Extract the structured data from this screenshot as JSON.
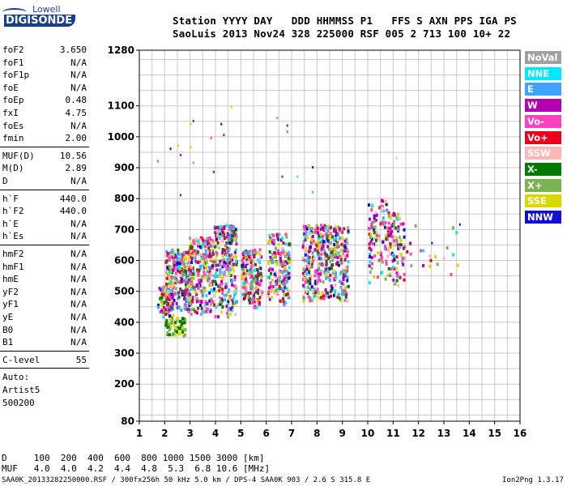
{
  "logo": {
    "top": "Lowell",
    "main": "DIGISONDE"
  },
  "header": {
    "line1": "Station YYYY DAY   DDD HHMMSS P1   FFS S AXN PPS IGA PS",
    "line2": "SaoLuis 2013 Nov24 328 225000 RSF 005 2 713 100 10+ 22"
  },
  "params_group1": [
    {
      "k": "foF2",
      "v": "3.650"
    },
    {
      "k": "foF1",
      "v": "N/A"
    },
    {
      "k": "foF1p",
      "v": "N/A"
    },
    {
      "k": "foE",
      "v": "N/A"
    },
    {
      "k": "foEp",
      "v": "0.48"
    },
    {
      "k": "fxI",
      "v": "4.75"
    },
    {
      "k": "foEs",
      "v": "N/A"
    },
    {
      "k": "fmin",
      "v": "2.00"
    }
  ],
  "params_group2": [
    {
      "k": "MUF(D)",
      "v": "10.56"
    },
    {
      "k": "M(D)",
      "v": "2.89"
    },
    {
      "k": "D",
      "v": "N/A"
    }
  ],
  "params_group3": [
    {
      "k": "h`F",
      "v": "440.0"
    },
    {
      "k": "h`F2",
      "v": "440.0"
    },
    {
      "k": "h`E",
      "v": "N/A"
    },
    {
      "k": "h`Es",
      "v": "N/A"
    }
  ],
  "params_group4": [
    {
      "k": "hmF2",
      "v": "N/A"
    },
    {
      "k": "hmF1",
      "v": "N/A"
    },
    {
      "k": "hmE",
      "v": "N/A"
    },
    {
      "k": "yF2",
      "v": "N/A"
    },
    {
      "k": "yF1",
      "v": "N/A"
    },
    {
      "k": "yE",
      "v": "N/A"
    },
    {
      "k": "B0",
      "v": "N/A"
    },
    {
      "k": "B1",
      "v": "N/A"
    }
  ],
  "clevel": {
    "k": "C-level",
    "v": "55"
  },
  "auto": [
    "Auto:",
    "Artist5",
    "500200"
  ],
  "bottom": {
    "d_line": "D     100  200  400  600  800 1000 1500 3000 [km]",
    "muf_line": "MUF   4.0  4.0  4.2  4.4  4.8  5.3  6.8 10.6 [MHz]"
  },
  "footer": {
    "left": "SAA0K_20133282250000.RSF / 300fx256h 50 kHz 5.0 km / DPS-4 SAA0K 903 / 2.6 S 315.8 E",
    "right": "Ion2Png 1.3.17"
  },
  "legend": [
    {
      "label": "NoVal",
      "color": "#a0a0a0"
    },
    {
      "label": "NNE",
      "color": "#00e8ff"
    },
    {
      "label": "E",
      "color": "#3ea2ff"
    },
    {
      "label": "W",
      "color": "#b000b0"
    },
    {
      "label": "Vo-",
      "color": "#ff40c0"
    },
    {
      "label": "Vo+",
      "color": "#e8001c"
    },
    {
      "label": "SSW",
      "color": "#ffb6b6"
    },
    {
      "label": "X-",
      "color": "#007a00"
    },
    {
      "label": "X+",
      "color": "#78b450"
    },
    {
      "label": "SSE",
      "color": "#d8d800"
    },
    {
      "label": "NNW",
      "color": "#1010d0"
    }
  ],
  "chart_data": {
    "type": "scatter",
    "x_ticks": [
      "1",
      "2",
      "3",
      "4",
      "5",
      "6",
      "7",
      "8",
      "9",
      "10",
      "11",
      "12",
      "13",
      "14",
      "15",
      "16"
    ],
    "y_ticks": [
      "80",
      "200",
      "300",
      "400",
      "500",
      "600",
      "700",
      "800",
      "900",
      "1000",
      "1100",
      "1280"
    ],
    "xlim": [
      1,
      16
    ],
    "ylim": [
      80,
      1280
    ],
    "grid": true,
    "legend_position": "right",
    "clusters": [
      {
        "x": [
          1.7,
          2.3
        ],
        "y": [
          420,
          520
        ],
        "n": 90
      },
      {
        "x": [
          2.0,
          3.0
        ],
        "y": [
          440,
          640
        ],
        "n": 260
      },
      {
        "x": [
          2.0,
          2.8
        ],
        "y": [
          360,
          420
        ],
        "n": 70,
        "colors": [
          "#007a00",
          "#78b450",
          "#d8d800"
        ]
      },
      {
        "x": [
          2.9,
          3.9
        ],
        "y": [
          430,
          680
        ],
        "n": 260
      },
      {
        "x": [
          3.9,
          4.8
        ],
        "y": [
          420,
          720
        ],
        "n": 260
      },
      {
        "x": [
          5.0,
          5.8
        ],
        "y": [
          450,
          640
        ],
        "n": 170
      },
      {
        "x": [
          6.0,
          6.9
        ],
        "y": [
          460,
          690
        ],
        "n": 170
      },
      {
        "x": [
          7.4,
          8.3
        ],
        "y": [
          470,
          720
        ],
        "n": 210
      },
      {
        "x": [
          8.3,
          9.2
        ],
        "y": [
          470,
          720
        ],
        "n": 200
      },
      {
        "x": [
          10.0,
          10.8
        ],
        "y": [
          530,
          800
        ],
        "n": 110
      },
      {
        "x": [
          10.8,
          11.4
        ],
        "y": [
          520,
          760
        ],
        "n": 90
      },
      {
        "x": [
          11.5,
          13.6
        ],
        "y": [
          540,
          720
        ],
        "n": 20
      }
    ],
    "scattered_points": [
      [
        1.7,
        925
      ],
      [
        2.2,
        965
      ],
      [
        2.5,
        975
      ],
      [
        2.6,
        945
      ],
      [
        2.6,
        815
      ],
      [
        3.0,
        1045
      ],
      [
        3.1,
        1055
      ],
      [
        3.0,
        970
      ],
      [
        3.1,
        920
      ],
      [
        3.8,
        1000
      ],
      [
        4.2,
        1045
      ],
      [
        4.6,
        1100
      ],
      [
        4.3,
        1010
      ],
      [
        3.9,
        890
      ],
      [
        6.4,
        1065
      ],
      [
        6.8,
        1040
      ],
      [
        6.8,
        1020
      ],
      [
        6.6,
        875
      ],
      [
        7.2,
        875
      ],
      [
        7.8,
        905
      ],
      [
        7.8,
        825
      ],
      [
        11.1,
        935
      ],
      [
        12.5,
        660
      ],
      [
        13.6,
        720
      ]
    ]
  }
}
